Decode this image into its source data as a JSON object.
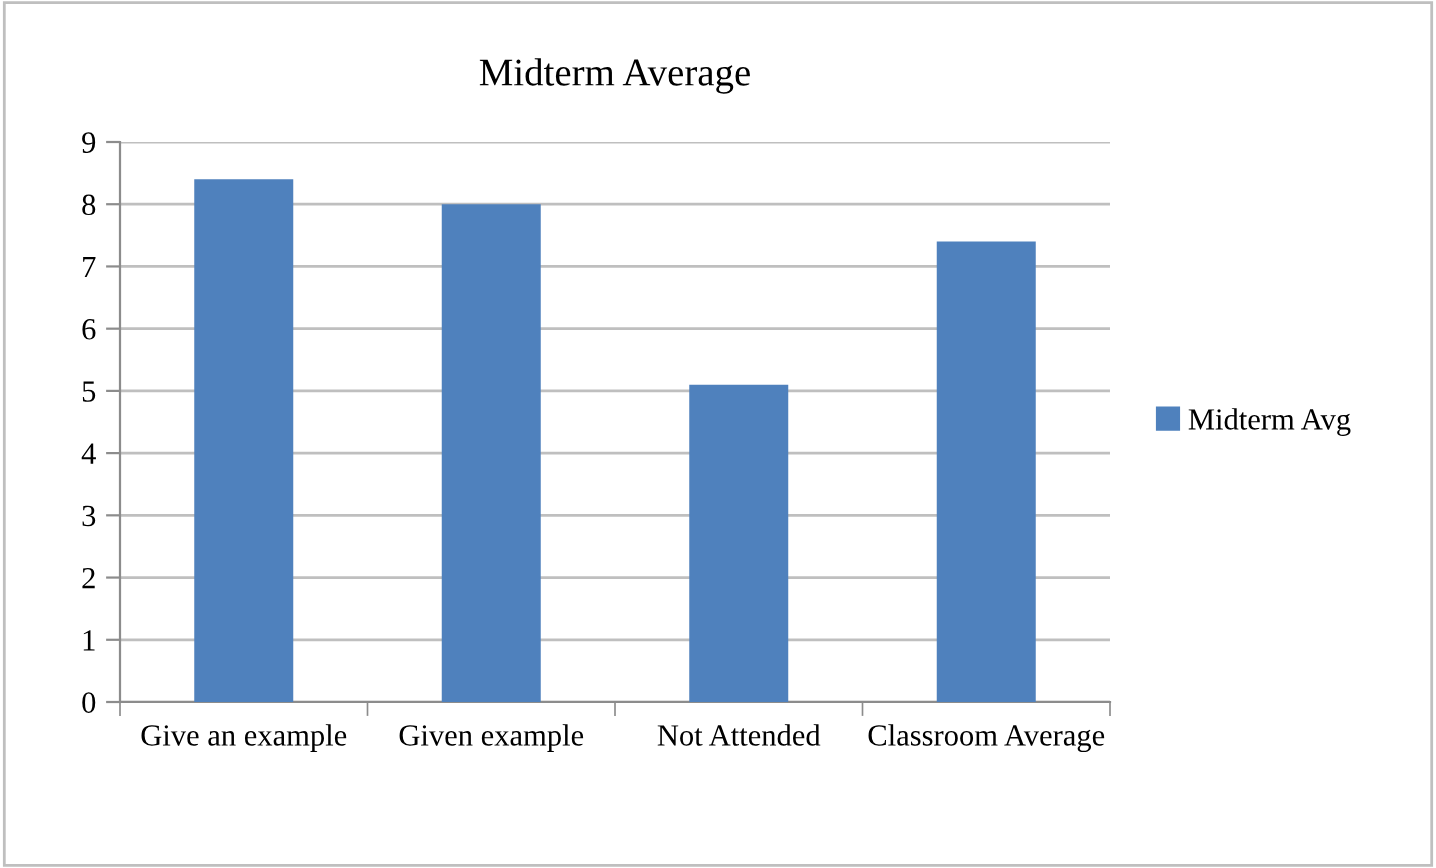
{
  "chart_data": {
    "type": "bar",
    "title": "Midterm Average",
    "categories": [
      "Give an example",
      "Given example",
      "Not Attended",
      "Classroom Average"
    ],
    "series": [
      {
        "name": "Midterm Avg",
        "color": "#4f81bd",
        "values": [
          8.4,
          8.0,
          5.1,
          7.4
        ]
      }
    ],
    "ylim": [
      0,
      9
    ],
    "yticks": [
      0,
      1,
      2,
      3,
      4,
      5,
      6,
      7,
      8,
      9
    ],
    "grid": "y",
    "legend": "right"
  }
}
